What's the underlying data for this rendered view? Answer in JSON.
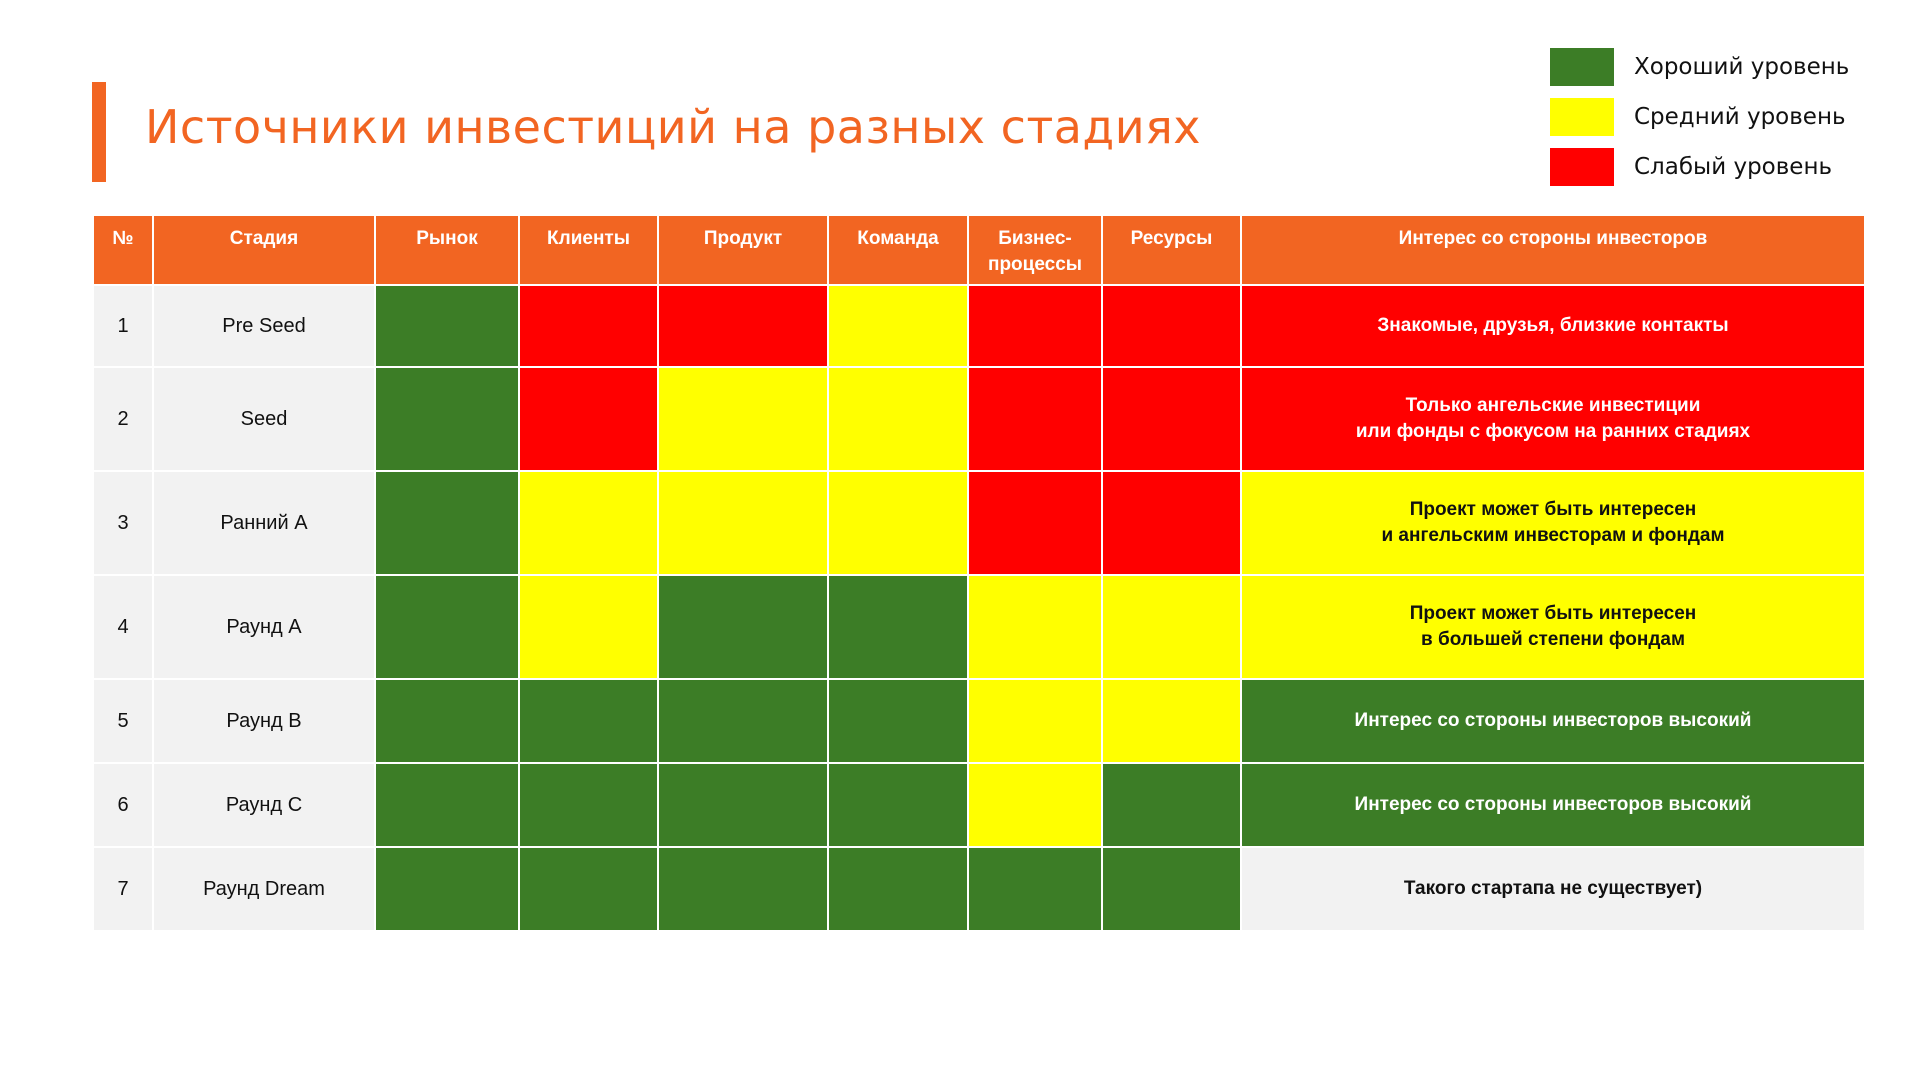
{
  "colors": {
    "accent": "#F26522",
    "good": "#3C7D26",
    "mid": "#FFFF00",
    "weak": "#FF0000",
    "none": "#F2F2F2"
  },
  "title": "Источники инвестиций на разных стадиях",
  "legend": [
    {
      "level": "good",
      "label": "Хороший уровень"
    },
    {
      "level": "mid",
      "label": "Средний уровень"
    },
    {
      "level": "weak",
      "label": "Слабый уровень"
    }
  ],
  "table": {
    "headers": {
      "num": "№",
      "stage": "Стадия",
      "market": "Рынок",
      "clients": "Клиенты",
      "product": "Продукт",
      "team": "Команда",
      "business_line1": "Бизнес-",
      "business_line2": "процессы",
      "resources": "Ресурсы",
      "interest": "Интерес со стороны инвесторов"
    },
    "rows": [
      {
        "num": "1",
        "stage": "Pre Seed",
        "levels": [
          "good",
          "weak",
          "weak",
          "mid",
          "weak",
          "weak"
        ],
        "interest_level": "weak",
        "interest_lines": [
          "Знакомые, друзья, близкие контакты"
        ]
      },
      {
        "num": "2",
        "stage": "Seed",
        "levels": [
          "good",
          "weak",
          "mid",
          "mid",
          "weak",
          "weak"
        ],
        "interest_level": "weak",
        "interest_lines": [
          "Только ангельские инвестиции",
          "или фонды с фокусом на ранних стадиях"
        ]
      },
      {
        "num": "3",
        "stage": "Ранний А",
        "levels": [
          "good",
          "mid",
          "mid",
          "mid",
          "weak",
          "weak"
        ],
        "interest_level": "mid",
        "interest_lines": [
          "Проект может быть интересен",
          "и ангельским инвесторам и фондам"
        ]
      },
      {
        "num": "4",
        "stage": "Раунд А",
        "levels": [
          "good",
          "mid",
          "good",
          "good",
          "mid",
          "mid"
        ],
        "interest_level": "mid",
        "interest_lines": [
          "Проект может быть интересен",
          "в большей степени фондам"
        ]
      },
      {
        "num": "5",
        "stage": "Раунд B",
        "levels": [
          "good",
          "good",
          "good",
          "good",
          "mid",
          "mid"
        ],
        "interest_level": "good",
        "interest_lines": [
          "Интерес со стороны инвесторов высокий"
        ]
      },
      {
        "num": "6",
        "stage": "Раунд С",
        "levels": [
          "good",
          "good",
          "good",
          "good",
          "mid",
          "good"
        ],
        "interest_level": "good",
        "interest_lines": [
          "Интерес со стороны инвесторов высокий"
        ]
      },
      {
        "num": "7",
        "stage": "Раунд Dream",
        "levels": [
          "good",
          "good",
          "good",
          "good",
          "good",
          "good"
        ],
        "interest_level": "none",
        "interest_lines": [
          "Такого стартапа не существует)"
        ]
      }
    ]
  }
}
